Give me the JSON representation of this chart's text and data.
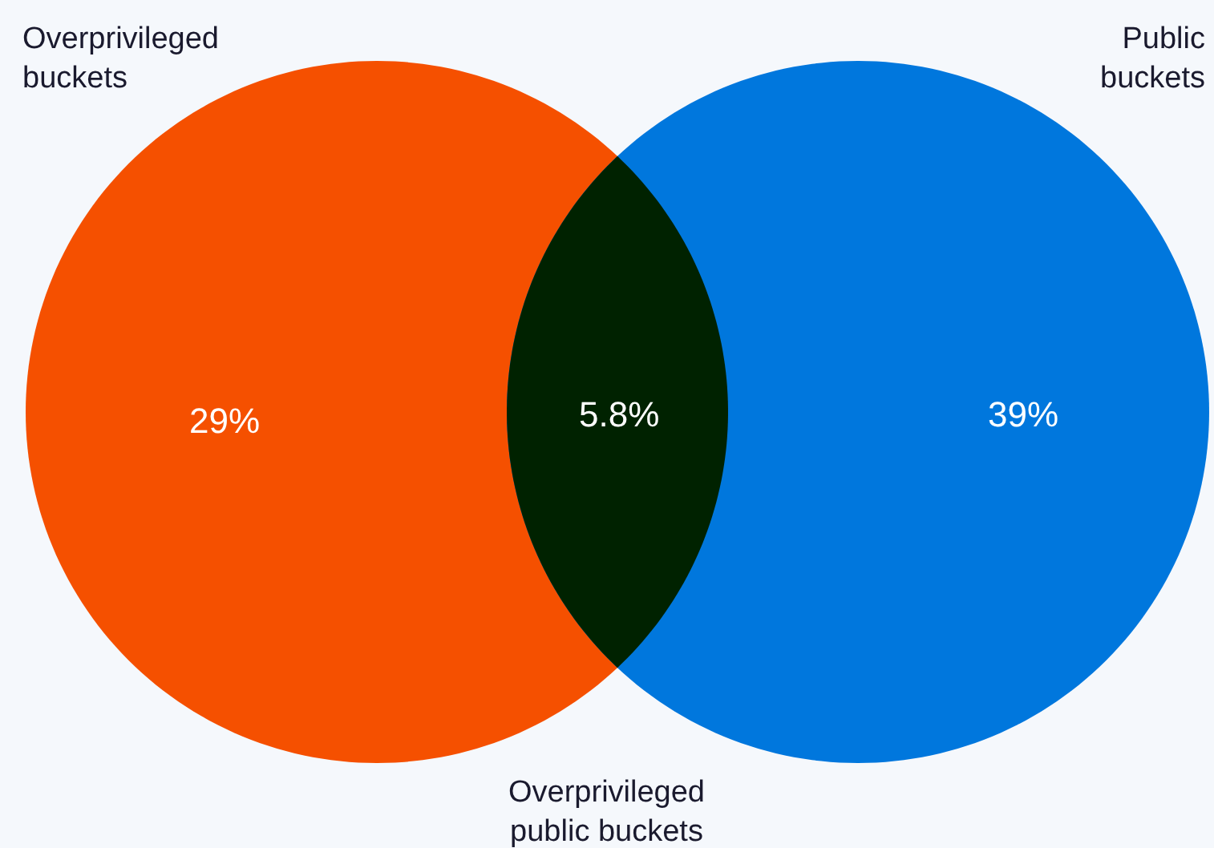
{
  "chart_data": {
    "type": "other",
    "categories": [
      "Overprivileged buckets",
      "Public buckets",
      "Overprivileged public buckets"
    ],
    "values": [
      29,
      39,
      5.8
    ],
    "value_labels": [
      "29%",
      "39%",
      "5.8%"
    ],
    "colors": [
      "#f55000",
      "#0077dd",
      "#002200"
    ]
  }
}
